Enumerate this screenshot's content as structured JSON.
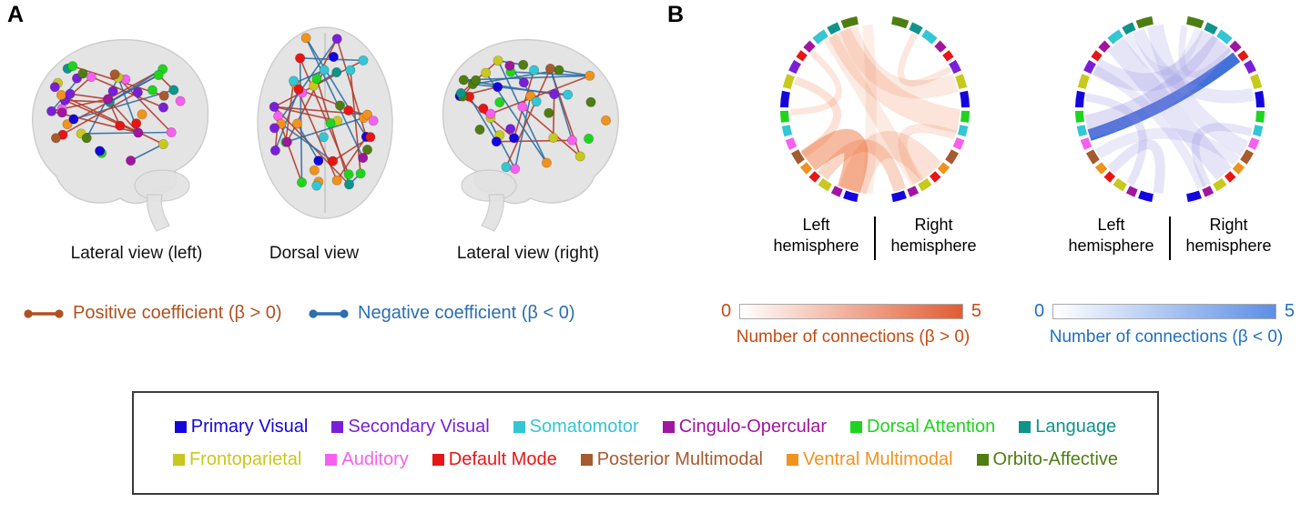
{
  "panel_a": {
    "label": "A",
    "captions": [
      "Lateral view (left)",
      "Dorsal view",
      "Lateral view (right)"
    ],
    "coef_legend": [
      {
        "label": "Positive coefficient (β > 0)",
        "color": "#b0511f"
      },
      {
        "label": "Negative coefficient (β < 0)",
        "color": "#2b6fad"
      }
    ],
    "edge_colors": {
      "positive": "#b23a2a",
      "negative": "#2e6da4"
    }
  },
  "panel_b": {
    "label": "B",
    "hemisphere_labels": {
      "left_line1": "Left",
      "left_line2": "hemisphere",
      "right_line1": "Right",
      "right_line2": "hemisphere"
    },
    "colorbars": [
      {
        "min": "0",
        "max": "5",
        "label": "Number of connections (β > 0)",
        "color": "#e25c33",
        "text_color": "#c64a10"
      },
      {
        "min": "0",
        "max": "5",
        "label": "Number of connections (β < 0)",
        "color": "#5d8ee6",
        "text_color": "#1f6fc2"
      }
    ]
  },
  "network_legend": {
    "items": [
      {
        "label": "Primary Visual",
        "color": "#1405dd"
      },
      {
        "label": "Secondary Visual",
        "color": "#7a1fd8"
      },
      {
        "label": "Somatomotor",
        "color": "#33c6d4"
      },
      {
        "label": "Cingulo-Opercular",
        "color": "#a0169e"
      },
      {
        "label": "Dorsal Attention",
        "color": "#1ed41e"
      },
      {
        "label": "Language",
        "color": "#0e948c"
      },
      {
        "label": "Frontoparietal",
        "color": "#c8c81e"
      },
      {
        "label": "Auditory",
        "color": "#f660ee"
      },
      {
        "label": "Default Mode",
        "color": "#e81515"
      },
      {
        "label": "Posterior Multimodal",
        "color": "#a65a2e"
      },
      {
        "label": "Ventral Multimodal",
        "color": "#f0921e"
      },
      {
        "label": "Orbito-Affective",
        "color": "#4e7e12"
      }
    ]
  }
}
